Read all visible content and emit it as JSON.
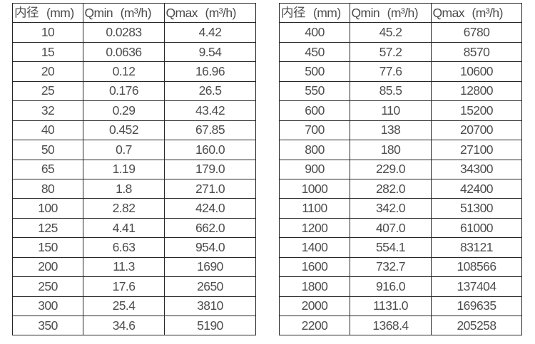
{
  "page": {
    "background": "#ffffff",
    "description": "Flow meter inner diameter vs. minimum and maximum flow rate specification tables"
  },
  "colors": {
    "border": "#262626",
    "text": "#4a4a4a",
    "cell_background": "#ffffff"
  },
  "columns": [
    "内径（mm）",
    "Qmin（m³/h）",
    "Qmax（m³/h）"
  ],
  "tables": [
    {
      "name": "left",
      "rows": [
        [
          "10",
          "0.0283",
          "4.42"
        ],
        [
          "15",
          "0.0636",
          "9.54"
        ],
        [
          "20",
          "0.12",
          "16.96"
        ],
        [
          "25",
          "0.176",
          "26.5"
        ],
        [
          "32",
          "0.29",
          "43.42"
        ],
        [
          "40",
          "0.452",
          "67.85"
        ],
        [
          "50",
          "0.7",
          "160.0"
        ],
        [
          "65",
          "1.19",
          "179.0"
        ],
        [
          "80",
          "1.8",
          "271.0"
        ],
        [
          "100",
          "2.82",
          "424.0"
        ],
        [
          "125",
          "4.41",
          "662.0"
        ],
        [
          "150",
          "6.63",
          "954.0"
        ],
        [
          "200",
          "11.3",
          "1690"
        ],
        [
          "250",
          "17.6",
          "2650"
        ],
        [
          "300",
          "25.4",
          "3810"
        ],
        [
          "350",
          "34.6",
          "5190"
        ]
      ]
    },
    {
      "name": "right",
      "rows": [
        [
          "400",
          "45.2",
          "6780"
        ],
        [
          "450",
          "57.2",
          "8570"
        ],
        [
          "500",
          "77.6",
          "10600"
        ],
        [
          "550",
          "85.5",
          "12800"
        ],
        [
          "600",
          "110",
          "15200"
        ],
        [
          "700",
          "138",
          "20700"
        ],
        [
          "800",
          "180",
          "27100"
        ],
        [
          "900",
          "229.0",
          "34300"
        ],
        [
          "1000",
          "282.0",
          "42400"
        ],
        [
          "1100",
          "342.0",
          "51300"
        ],
        [
          "1200",
          "407.0",
          "61000"
        ],
        [
          "1400",
          "554.1",
          "83121"
        ],
        [
          "1600",
          "732.7",
          "108566"
        ],
        [
          "1800",
          "916.0",
          "137404"
        ],
        [
          "2000",
          "1131.0",
          "169635"
        ],
        [
          "2200",
          "1368.4",
          "205258"
        ]
      ]
    }
  ],
  "chart_data": {
    "type": "table",
    "title": "",
    "columns": [
      "内径（mm）",
      "Qmin（m³/h）",
      "Qmax（m³/h）"
    ],
    "series": [
      {
        "name": "left-table",
        "inner_diameter_mm": [
          10,
          15,
          20,
          25,
          32,
          40,
          50,
          65,
          80,
          100,
          125,
          150,
          200,
          250,
          300,
          350
        ],
        "qmin_m3h": [
          0.0283,
          0.0636,
          0.12,
          0.176,
          0.29,
          0.452,
          0.7,
          1.19,
          1.8,
          2.82,
          4.41,
          6.63,
          11.3,
          17.6,
          25.4,
          34.6
        ],
        "qmax_m3h": [
          4.42,
          9.54,
          16.96,
          26.5,
          43.42,
          67.85,
          160.0,
          179.0,
          271.0,
          424.0,
          662.0,
          954.0,
          1690,
          2650,
          3810,
          5190
        ]
      },
      {
        "name": "right-table",
        "inner_diameter_mm": [
          400,
          450,
          500,
          550,
          600,
          700,
          800,
          900,
          1000,
          1100,
          1200,
          1400,
          1600,
          1800,
          2000,
          2200
        ],
        "qmin_m3h": [
          45.2,
          57.2,
          77.6,
          85.5,
          110,
          138,
          180,
          229.0,
          282.0,
          342.0,
          407.0,
          554.1,
          732.7,
          916.0,
          1131.0,
          1368.4
        ],
        "qmax_m3h": [
          6780,
          8570,
          10600,
          12800,
          15200,
          20700,
          27100,
          34300,
          42400,
          51300,
          61000,
          83121,
          108566,
          137404,
          169635,
          205258
        ]
      }
    ]
  }
}
